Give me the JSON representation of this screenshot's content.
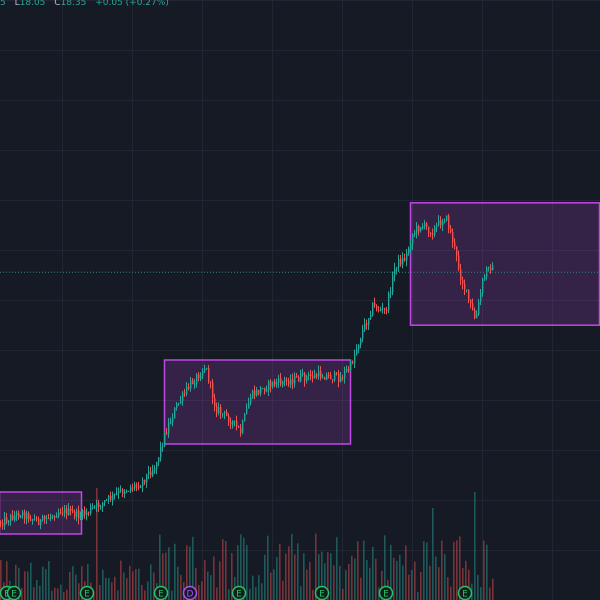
{
  "ohlc_header": {
    "truncated_prefix": "5",
    "low_label": "L",
    "low_value": "18.05",
    "close_label": "C",
    "close_value": "18.35",
    "change_value": "+0.05",
    "change_pct": "(+0.27%)"
  },
  "colors": {
    "background": "#161a25",
    "grid": "#222632",
    "up": "#26a69a",
    "down": "#ef5350",
    "zone_stroke": "#c147e6",
    "zone_fill": "#c147e6",
    "current_price_line": "#2b8a82",
    "marker_earnings": "#22c55e",
    "marker_dividend": "#a855f7"
  },
  "markers": [
    {
      "type": "earnings",
      "letter": "E"
    },
    {
      "type": "earnings",
      "letter": "E"
    },
    {
      "type": "earnings",
      "letter": "E"
    },
    {
      "type": "earnings",
      "letter": "E"
    },
    {
      "type": "earnings",
      "letter": "E"
    },
    {
      "type": "dividend",
      "letter": "D"
    },
    {
      "type": "earnings",
      "letter": "E"
    },
    {
      "type": "earnings",
      "letter": "E"
    },
    {
      "type": "earnings",
      "letter": "E"
    },
    {
      "type": "earnings",
      "letter": "E"
    },
    {
      "type": "earnings",
      "letter": "E"
    },
    {
      "type": "earnings",
      "letter": "E"
    }
  ],
  "chart_data": {
    "type": "candlestick",
    "title": "",
    "price_keypoints_note": "",
    "path": [
      [
        0,
        0.87
      ],
      [
        20,
        0.855
      ],
      [
        40,
        0.87
      ],
      [
        60,
        0.85
      ],
      [
        80,
        0.86
      ],
      [
        100,
        0.84
      ],
      [
        120,
        0.82
      ],
      [
        140,
        0.805
      ],
      [
        155,
        0.775
      ],
      [
        165,
        0.72
      ],
      [
        175,
        0.68
      ],
      [
        190,
        0.64
      ],
      [
        205,
        0.61
      ],
      [
        215,
        0.68
      ],
      [
        230,
        0.7
      ],
      [
        240,
        0.72
      ],
      [
        250,
        0.66
      ],
      [
        270,
        0.64
      ],
      [
        300,
        0.63
      ],
      [
        320,
        0.625
      ],
      [
        340,
        0.63
      ],
      [
        350,
        0.61
      ],
      [
        360,
        0.56
      ],
      [
        372,
        0.51
      ],
      [
        385,
        0.52
      ],
      [
        395,
        0.44
      ],
      [
        405,
        0.43
      ],
      [
        412,
        0.39
      ],
      [
        420,
        0.375
      ],
      [
        432,
        0.385
      ],
      [
        445,
        0.36
      ],
      [
        452,
        0.4
      ],
      [
        460,
        0.46
      ],
      [
        470,
        0.51
      ],
      [
        475,
        0.535
      ],
      [
        482,
        0.47
      ],
      [
        488,
        0.44
      ],
      [
        493,
        0.45
      ]
    ],
    "zones": [
      {
        "x0": 0,
        "x1": 82,
        "y0": 0.82,
        "y1": 0.89
      },
      {
        "x0": 165,
        "x1": 351,
        "y0": 0.6,
        "y1": 0.74
      },
      {
        "x0": 411,
        "x1": 600,
        "y0": 0.338,
        "y1": 0.542
      }
    ],
    "current_price_level": 0.453
  }
}
